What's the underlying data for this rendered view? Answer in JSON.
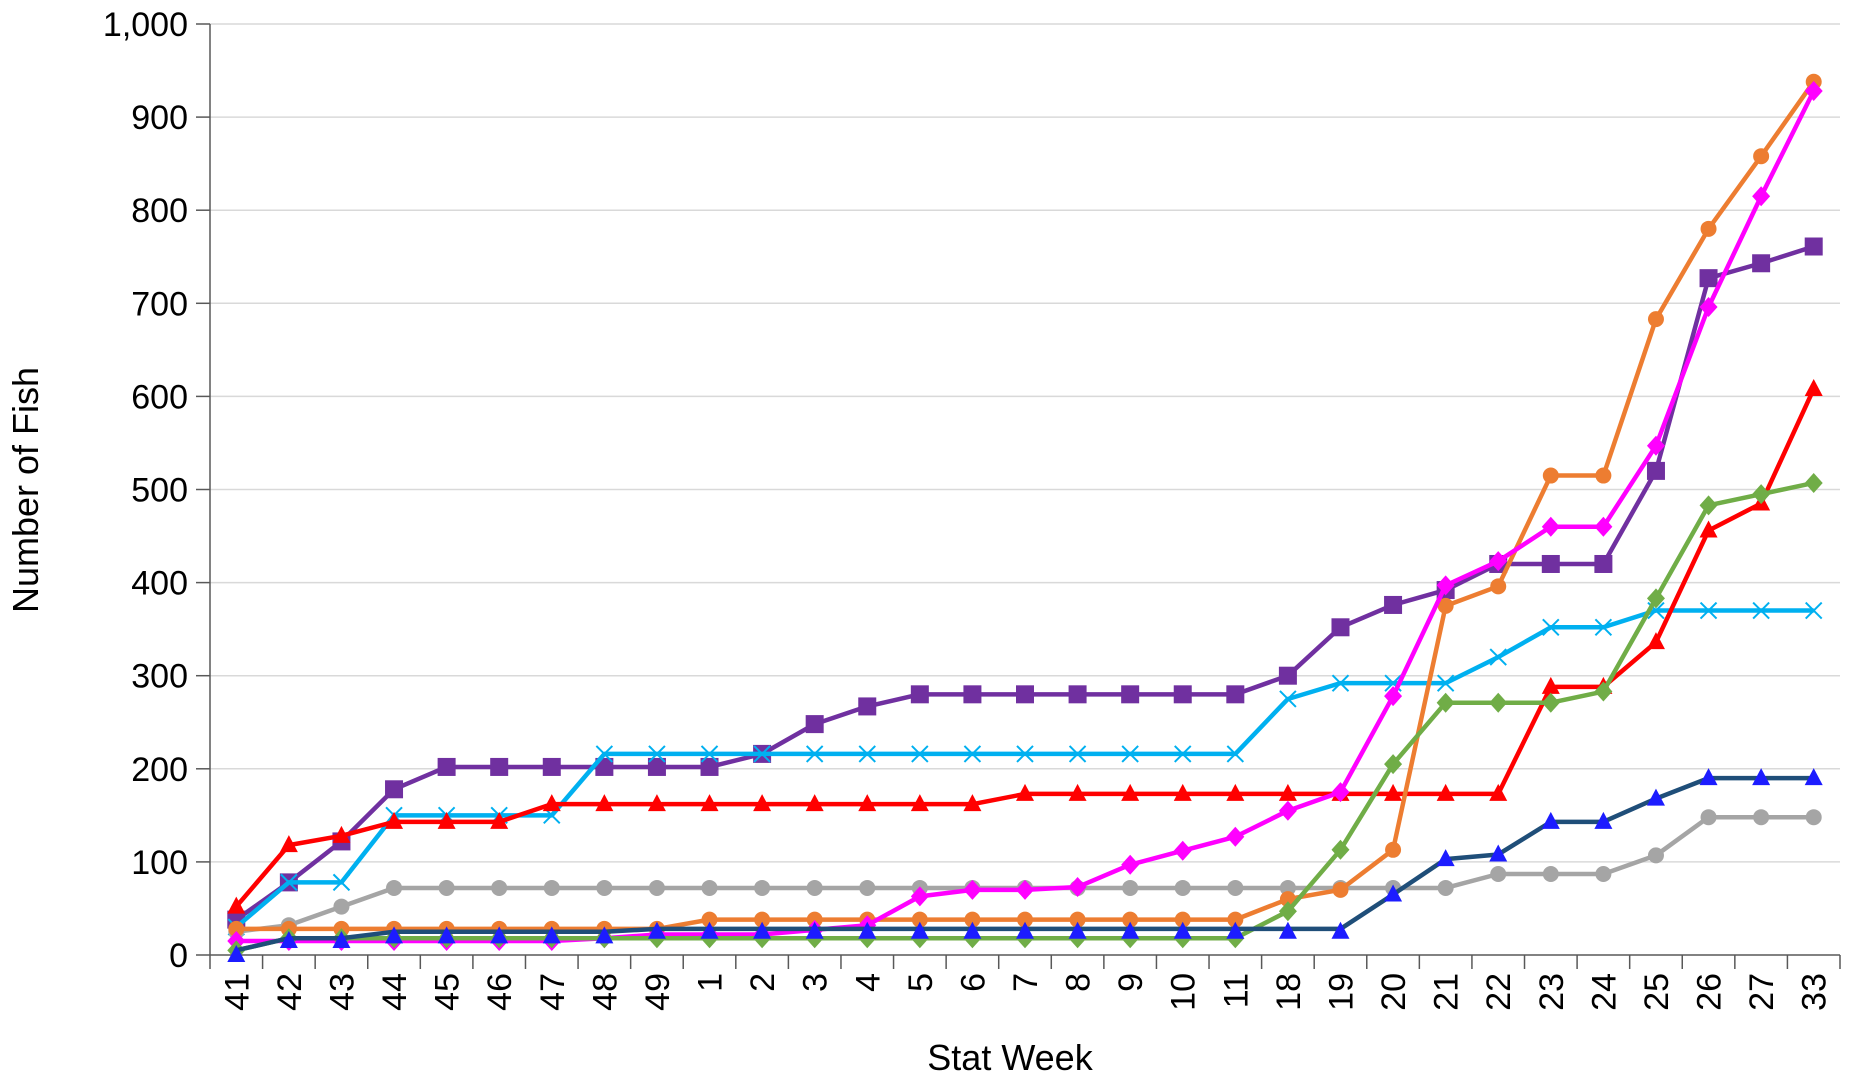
{
  "chart_data": {
    "type": "line",
    "xlabel": "Stat Week",
    "ylabel": "Number of Fish",
    "ylim": [
      0,
      1000
    ],
    "yticks": [
      0,
      100,
      200,
      300,
      400,
      500,
      600,
      700,
      800,
      900,
      1000
    ],
    "ytick_labels": [
      "0",
      "100",
      "200",
      "300",
      "400",
      "500",
      "600",
      "700",
      "800",
      "900",
      "1,000"
    ],
    "grid": "horizontal",
    "categories": [
      "41",
      "42",
      "43",
      "44",
      "45",
      "46",
      "47",
      "48",
      "49",
      "1",
      "2",
      "3",
      "4",
      "5",
      "6",
      "7",
      "8",
      "9",
      "10",
      "11",
      "18",
      "19",
      "20",
      "21",
      "22",
      "23",
      "24",
      "25",
      "26",
      "27",
      "33"
    ],
    "series": [
      {
        "color": "#7030A0",
        "marker": "square",
        "values": [
          38,
          78,
          122,
          178,
          202,
          202,
          202,
          202,
          202,
          202,
          216,
          248,
          267,
          280,
          280,
          280,
          280,
          280,
          280,
          280,
          300,
          352,
          376,
          392,
          420,
          420,
          420,
          520,
          727,
          743,
          761
        ]
      },
      {
        "color": "#00B0F0",
        "marker": "x",
        "values": [
          30,
          78,
          78,
          150,
          150,
          150,
          150,
          216,
          216,
          216,
          216,
          216,
          216,
          216,
          216,
          216,
          216,
          216,
          216,
          216,
          275,
          292,
          292,
          292,
          320,
          352,
          352,
          370,
          370,
          370,
          370
        ]
      },
      {
        "color": "#FF0000",
        "marker": "triangle",
        "values": [
          52,
          118,
          128,
          143,
          143,
          143,
          162,
          162,
          162,
          162,
          162,
          162,
          162,
          162,
          162,
          173,
          173,
          173,
          173,
          173,
          173,
          173,
          173,
          173,
          173,
          288,
          288,
          336,
          456,
          485,
          608
        ]
      },
      {
        "color": "#A5A5A5",
        "marker": "circle",
        "values": [
          25,
          32,
          52,
          72,
          72,
          72,
          72,
          72,
          72,
          72,
          72,
          72,
          72,
          72,
          72,
          72,
          72,
          72,
          72,
          72,
          72,
          72,
          72,
          72,
          87,
          87,
          87,
          107,
          148,
          148,
          148
        ]
      },
      {
        "color": "#ED7D31",
        "marker": "circle",
        "values": [
          28,
          28,
          28,
          28,
          28,
          28,
          28,
          28,
          28,
          38,
          38,
          38,
          38,
          38,
          38,
          38,
          38,
          38,
          38,
          38,
          60,
          70,
          113,
          375,
          396,
          515,
          515,
          683,
          780,
          858,
          938
        ]
      },
      {
        "color": "#FF00FF",
        "marker": "diamond",
        "values": [
          15,
          15,
          15,
          15,
          15,
          15,
          15,
          18,
          22,
          22,
          22,
          27,
          32,
          63,
          70,
          70,
          73,
          97,
          112,
          127,
          155,
          175,
          278,
          397,
          423,
          460,
          460,
          547,
          696,
          815,
          928
        ]
      },
      {
        "color": "#70AD47",
        "marker": "diamond",
        "values": [
          5,
          18,
          18,
          18,
          18,
          18,
          18,
          18,
          18,
          18,
          18,
          18,
          18,
          18,
          18,
          18,
          18,
          18,
          18,
          18,
          47,
          113,
          205,
          271,
          271,
          271,
          283,
          383,
          483,
          495,
          507
        ]
      },
      {
        "color": "#1F4E79",
        "marker": "none",
        "values": [
          5,
          18,
          18,
          25,
          25,
          25,
          25,
          25,
          28,
          28,
          28,
          28,
          28,
          28,
          28,
          28,
          28,
          28,
          28,
          28,
          28,
          28,
          65,
          103,
          108,
          143,
          143,
          168,
          190,
          190,
          190
        ]
      },
      {
        "color": "#1C1CFF",
        "marker": "triangle-only",
        "values": [
          0,
          15,
          15,
          20,
          20,
          20,
          20,
          20,
          25,
          25,
          25,
          25,
          25,
          25,
          25,
          25,
          25,
          25,
          25,
          25,
          25,
          25,
          65,
          103,
          108,
          143,
          143,
          168,
          190,
          190,
          190
        ]
      }
    ]
  }
}
